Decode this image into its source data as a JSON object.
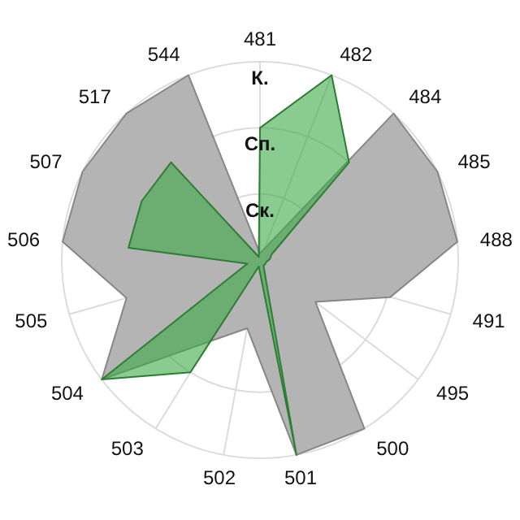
{
  "chart_data": {
    "type": "radar",
    "categories": [
      "481",
      "482",
      "484",
      "485",
      "488",
      "491",
      "495",
      "500",
      "501",
      "502",
      "503",
      "504",
      "505",
      "506",
      "507",
      "517",
      "544"
    ],
    "ylim": [
      0,
      3
    ],
    "yticks": [
      {
        "value": 1,
        "label": "Ск."
      },
      {
        "value": 2,
        "label": "Сп."
      },
      {
        "value": 3,
        "label": "К."
      }
    ],
    "grid": true,
    "series": [
      {
        "color": "#b4b4b4",
        "values": [
          0.1,
          null,
          3.0,
          3.0,
          3.0,
          2.05,
          1.05,
          3.0,
          3.0,
          1.05,
          null,
          3.0,
          2.1,
          3.0,
          3.0,
          3.0,
          3.0
        ]
      },
      {
        "color": "#3ca845",
        "values": [
          2.0,
          3.0,
          2.0,
          0.2,
          0.15,
          0.1,
          0.1,
          0.1,
          3.0,
          0.1,
          2.0,
          3.0,
          0.2,
          2.0,
          2.0,
          2.0,
          0.05
        ]
      }
    ]
  }
}
